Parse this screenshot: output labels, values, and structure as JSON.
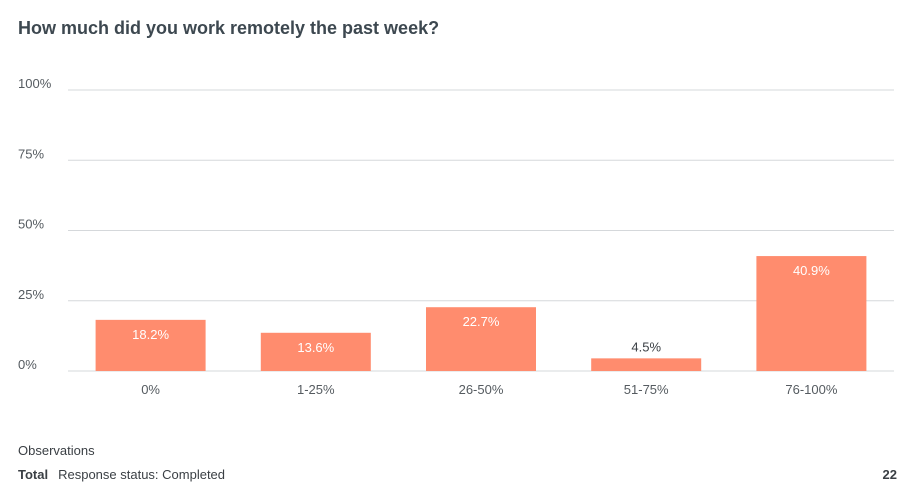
{
  "title": "How much did you work remotely the past week?",
  "colors": {
    "bar": "#ff8c6e",
    "grid": "#d5d8db",
    "label_inside": "#ffffff",
    "label_outside": "#3a3f44"
  },
  "chart_data": {
    "type": "bar",
    "title": "How much did you work remotely the past week?",
    "categories": [
      "0%",
      "1-25%",
      "26-50%",
      "51-75%",
      "76-100%"
    ],
    "values": [
      18.2,
      13.6,
      22.7,
      4.5,
      40.9
    ],
    "data_labels": [
      "18.2%",
      "13.6%",
      "22.7%",
      "4.5%",
      "40.9%"
    ],
    "ylim": [
      0,
      100
    ],
    "yticks": [
      0,
      25,
      50,
      75,
      100
    ],
    "ytick_labels": [
      "0%",
      "25%",
      "50%",
      "75%",
      "100%"
    ],
    "grid": true,
    "legend": "none"
  },
  "observations": {
    "heading": "Observations",
    "total_label": "Total",
    "status": "Response status: Completed",
    "count": "22"
  }
}
